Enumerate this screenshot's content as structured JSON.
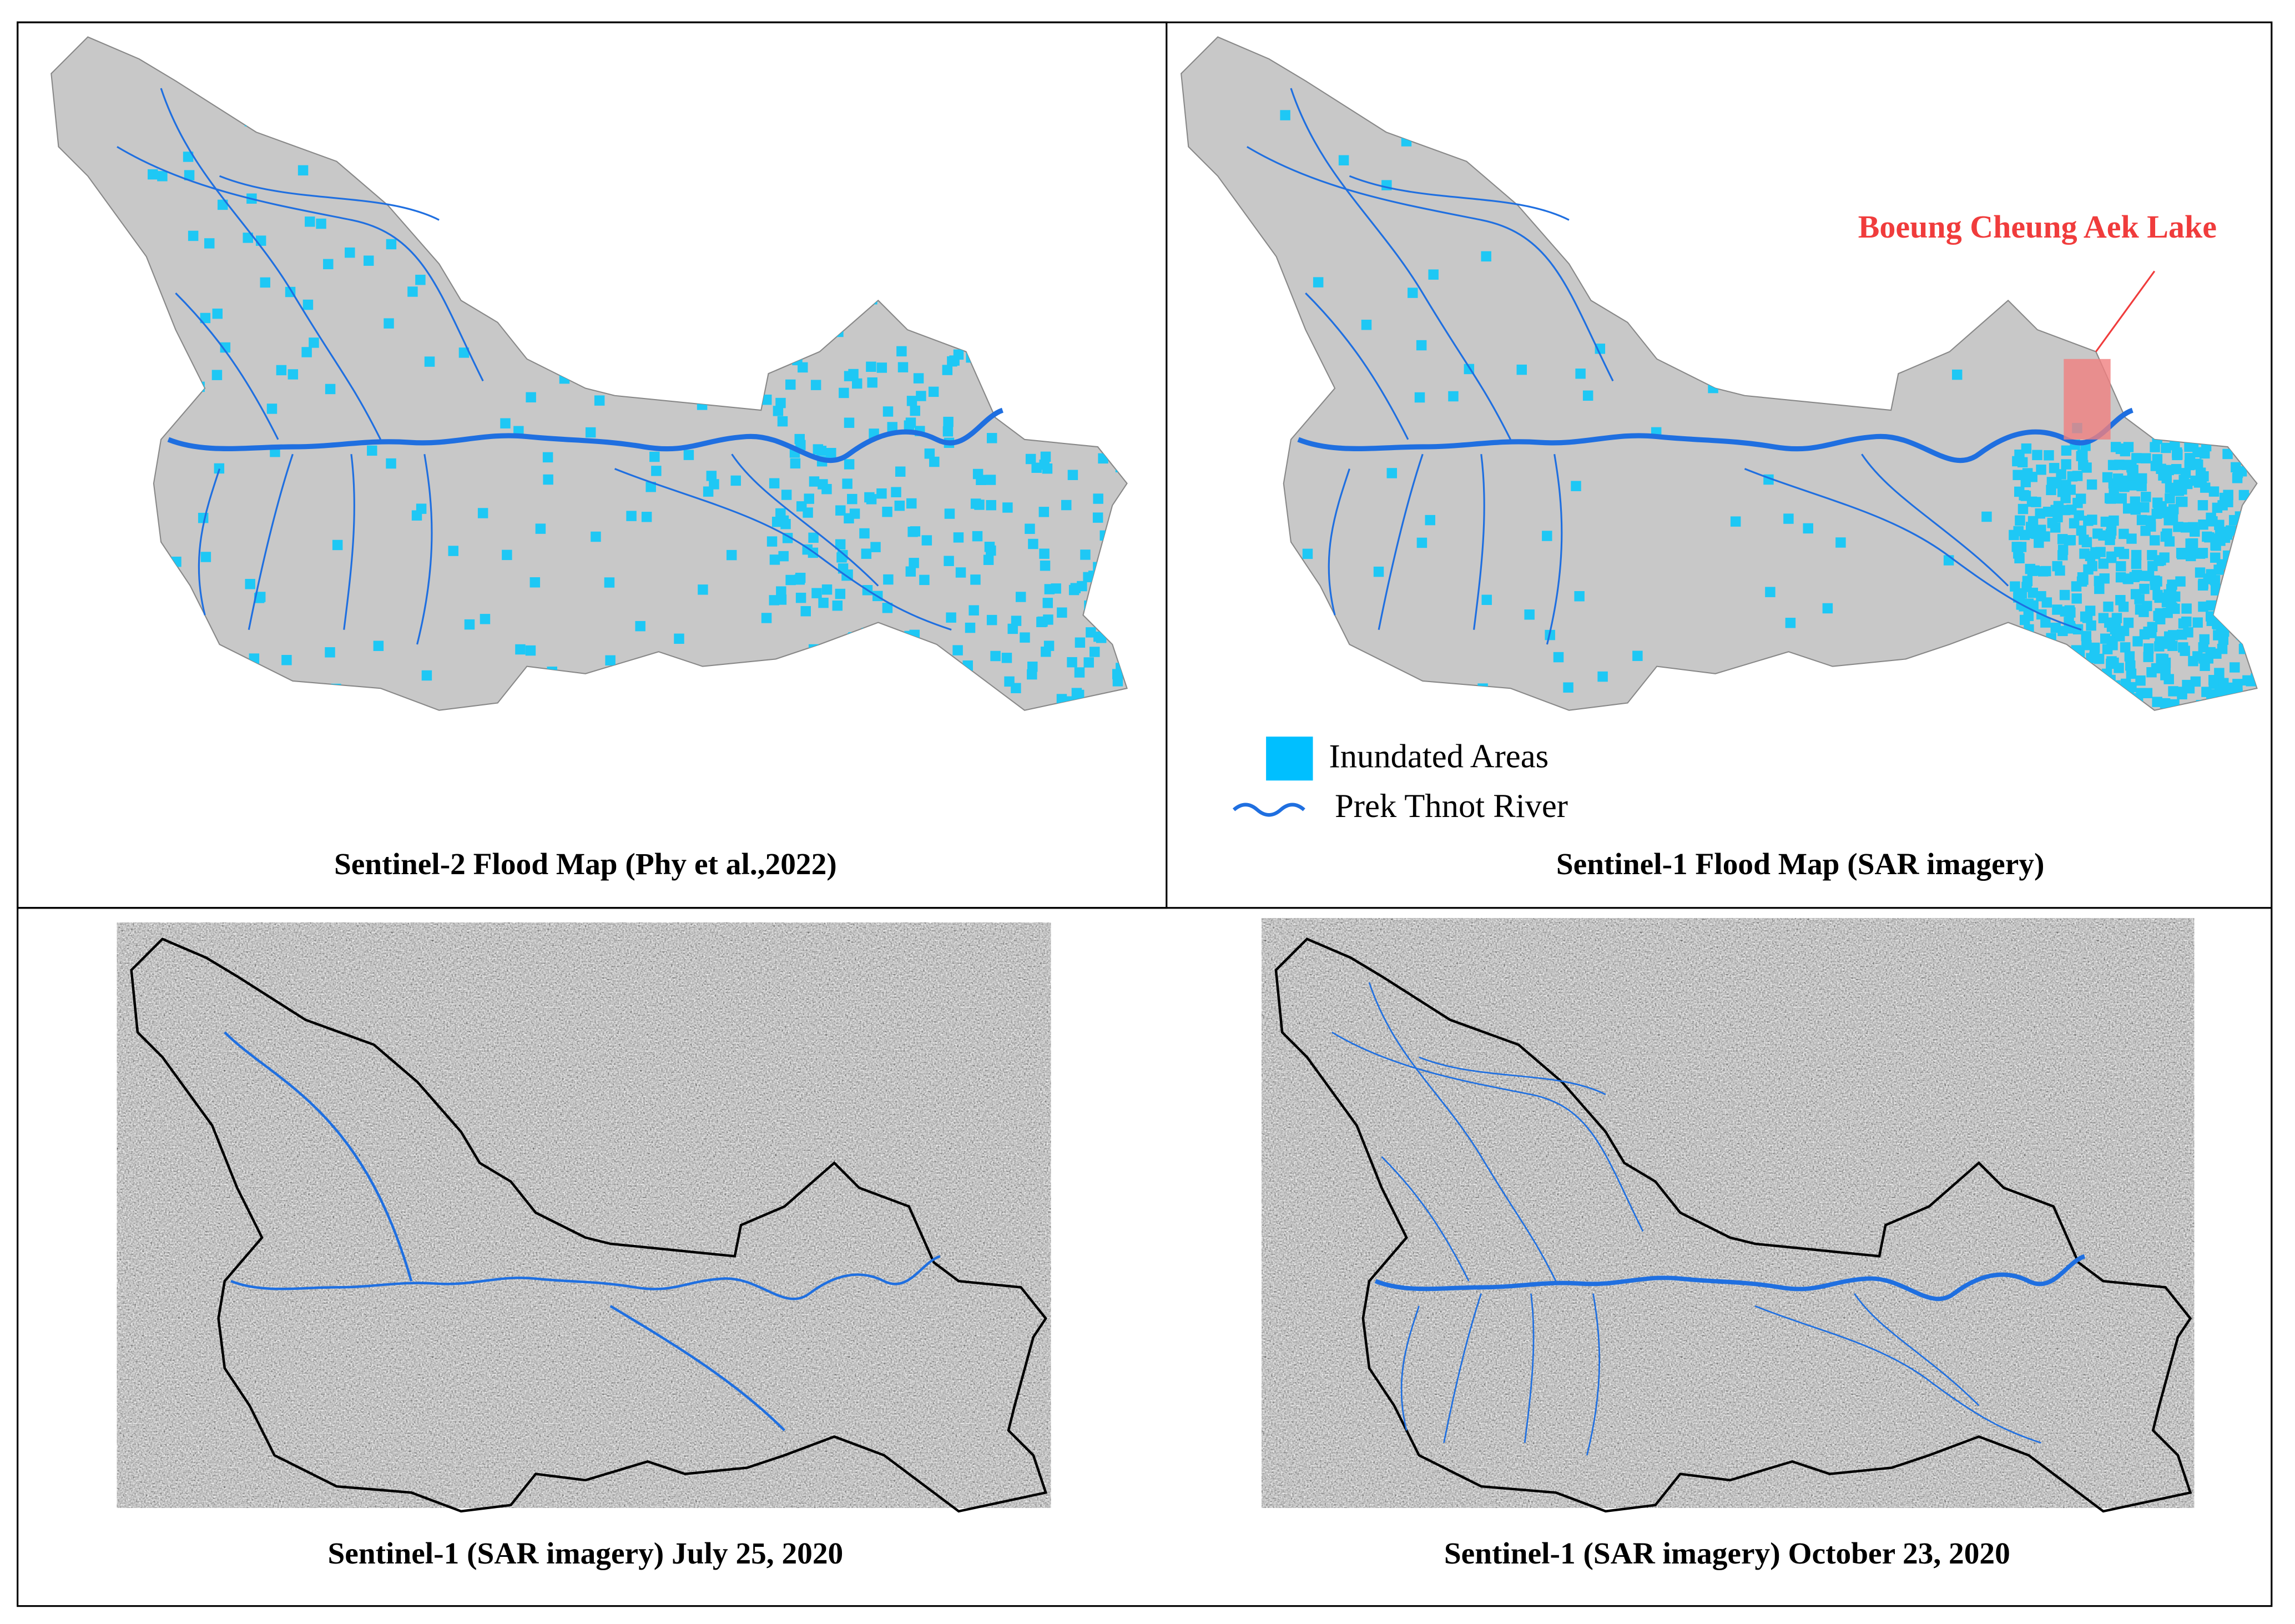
{
  "panels": [
    {
      "caption": "Sentinel-2 Flood Map (Phy et al.,2022)"
    },
    {
      "caption": "Sentinel-1 Flood Map (SAR imagery)",
      "annotation": "Boeung Cheung Aek Lake"
    },
    {
      "caption": "Sentinel-1 (SAR imagery) July 25, 2020"
    },
    {
      "caption": "Sentinel-1 (SAR imagery) October 23, 2020"
    }
  ],
  "legend": {
    "items": [
      {
        "label": "Inundated Areas"
      },
      {
        "label": "Prek Thnot River"
      }
    ]
  }
}
